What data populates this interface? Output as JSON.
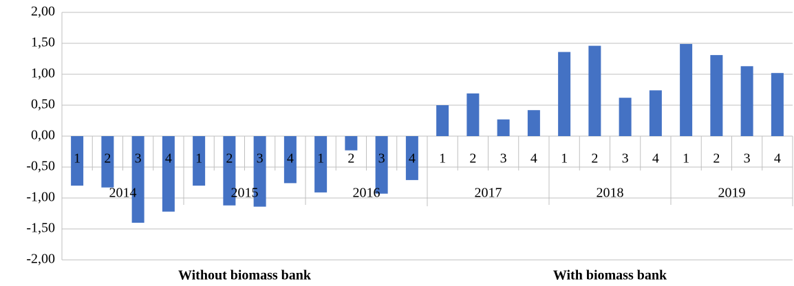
{
  "chart_data": {
    "type": "bar",
    "categories": [
      "1",
      "2",
      "3",
      "4",
      "1",
      "2",
      "3",
      "4",
      "1",
      "2",
      "3",
      "4",
      "1",
      "2",
      "3",
      "4",
      "1",
      "2",
      "3",
      "4",
      "1",
      "2",
      "3",
      "4"
    ],
    "years": [
      "2014",
      "2015",
      "2016",
      "2017",
      "2018",
      "2019"
    ],
    "groups": [
      "Without biomass bank",
      "With biomass bank"
    ],
    "values": [
      -0.8,
      -0.83,
      -1.4,
      -1.22,
      -0.8,
      -1.12,
      -1.14,
      -0.76,
      -0.91,
      -0.23,
      -0.93,
      -0.71,
      0.5,
      0.69,
      0.27,
      0.42,
      1.36,
      1.46,
      0.62,
      0.74,
      1.49,
      1.31,
      1.13,
      1.02
    ],
    "color": "#4472c4",
    "ylim": [
      -2,
      2
    ],
    "yticks": [
      {
        "value": -2,
        "label": "-2,00"
      },
      {
        "value": -1.5,
        "label": "-1,50"
      },
      {
        "value": -1,
        "label": "-1,00"
      },
      {
        "value": -0.5,
        "label": "-0,50"
      },
      {
        "value": 0,
        "label": "0,00"
      },
      {
        "value": 0.5,
        "label": "0,50"
      },
      {
        "value": 1,
        "label": "1,00"
      },
      {
        "value": 1.5,
        "label": "1,50"
      },
      {
        "value": 2,
        "label": "2,00"
      }
    ],
    "grid": true
  }
}
